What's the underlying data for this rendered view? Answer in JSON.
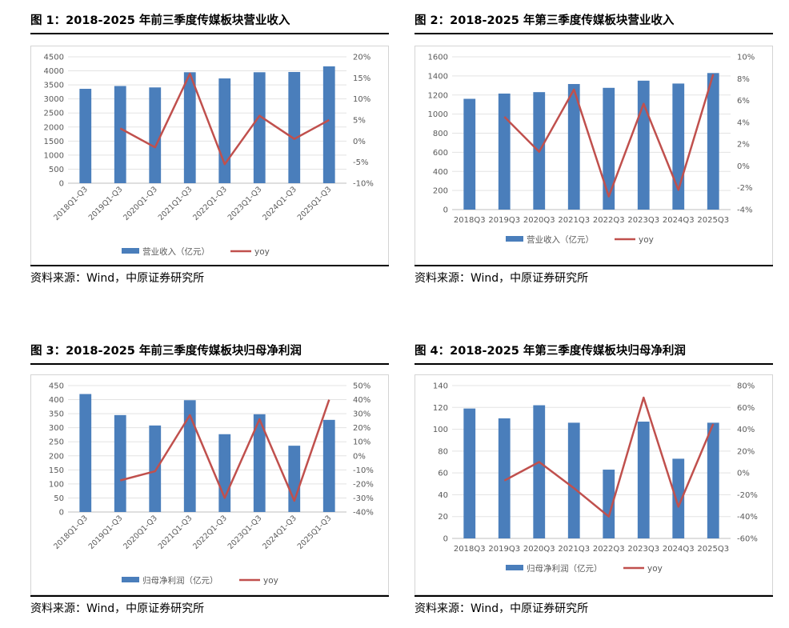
{
  "chart_data": [
    {
      "type": "bar",
      "title": "图 1：2018-2025 年前三季度传媒板块营业收入",
      "categories": [
        "2018Q1-Q3",
        "2019Q1-Q3",
        "2020Q1-Q3",
        "2021Q1-Q3",
        "2022Q1-Q3",
        "2023Q1-Q3",
        "2024Q1-Q3",
        "2025Q1-Q3"
      ],
      "series": [
        {
          "name": "营业收入（亿元）",
          "kind": "bar",
          "axis": "left",
          "color": "#4a7ebb",
          "values": [
            3360,
            3460,
            3410,
            3950,
            3730,
            3950,
            3960,
            4160
          ]
        },
        {
          "name": "yoy",
          "kind": "line",
          "axis": "right",
          "color": "#c0504d",
          "values": [
            null,
            3.0,
            -1.5,
            16.0,
            -5.5,
            6.0,
            0.5,
            5.0
          ]
        }
      ],
      "yticks_left": [
        0,
        500,
        1000,
        1500,
        2000,
        2500,
        3000,
        3500,
        4000,
        4500
      ],
      "yticks_right": [
        -10,
        -5,
        0,
        5,
        10,
        15,
        20
      ],
      "ylim_left": [
        0,
        4500
      ],
      "ylim_right": [
        -10,
        20
      ],
      "ylabel_right_suffix": "%",
      "rotated_xlabels": true,
      "legend_position": "bottom"
    },
    {
      "type": "bar",
      "title": "图 2：2018-2025 年第三季度传媒板块营业收入",
      "categories": [
        "2018Q3",
        "2019Q3",
        "2020Q3",
        "2021Q3",
        "2022Q3",
        "2023Q3",
        "2024Q3",
        "2025Q3"
      ],
      "series": [
        {
          "name": "营业收入（亿元）",
          "kind": "bar",
          "axis": "left",
          "color": "#4a7ebb",
          "values": [
            1160,
            1215,
            1230,
            1315,
            1275,
            1350,
            1320,
            1430
          ]
        },
        {
          "name": "yoy",
          "kind": "line",
          "axis": "right",
          "color": "#c0504d",
          "values": [
            null,
            4.5,
            1.3,
            7.0,
            -2.8,
            5.7,
            -2.2,
            8.4
          ]
        }
      ],
      "yticks_left": [
        0,
        200,
        400,
        600,
        800,
        1000,
        1200,
        1400,
        1600
      ],
      "yticks_right": [
        -4,
        -2,
        0,
        2,
        4,
        6,
        8,
        10
      ],
      "ylim_left": [
        0,
        1600
      ],
      "ylim_right": [
        -4,
        10
      ],
      "ylabel_right_suffix": "%",
      "rotated_xlabels": false,
      "legend_position": "bottom"
    },
    {
      "type": "bar",
      "title": "图 3：2018-2025 年前三季度传媒板块归母净利润",
      "categories": [
        "2018Q1-Q3",
        "2019Q1-Q3",
        "2020Q1-Q3",
        "2021Q1-Q3",
        "2022Q1-Q3",
        "2023Q1-Q3",
        "2024Q1-Q3",
        "2025Q1-Q3"
      ],
      "series": [
        {
          "name": "归母净利润（亿元）",
          "kind": "bar",
          "axis": "left",
          "color": "#4a7ebb",
          "values": [
            420,
            345,
            308,
            398,
            277,
            348,
            236,
            328
          ]
        },
        {
          "name": "yoy",
          "kind": "line",
          "axis": "right",
          "color": "#c0504d",
          "values": [
            null,
            -17.5,
            -11.0,
            29.0,
            -30.0,
            26.0,
            -32.0,
            40.0
          ]
        }
      ],
      "yticks_left": [
        0,
        50,
        100,
        150,
        200,
        250,
        300,
        350,
        400,
        450
      ],
      "yticks_right": [
        -40,
        -30,
        -20,
        -10,
        0,
        10,
        20,
        30,
        40,
        50
      ],
      "ylim_left": [
        0,
        450
      ],
      "ylim_right": [
        -40,
        50
      ],
      "ylabel_right_suffix": "%",
      "rotated_xlabels": true,
      "legend_position": "bottom"
    },
    {
      "type": "bar",
      "title": "图 4：2018-2025 年第三季度传媒板块归母净利润",
      "categories": [
        "2018Q3",
        "2019Q3",
        "2020Q3",
        "2021Q3",
        "2022Q3",
        "2023Q3",
        "2024Q3",
        "2025Q3"
      ],
      "series": [
        {
          "name": "归母净利润（亿元）",
          "kind": "bar",
          "axis": "left",
          "color": "#4a7ebb",
          "values": [
            119,
            110,
            122,
            106,
            63,
            107,
            73,
            106
          ]
        },
        {
          "name": "yoy",
          "kind": "line",
          "axis": "right",
          "color": "#c0504d",
          "values": [
            null,
            -7.0,
            10.0,
            -14.0,
            -40.0,
            69.0,
            -31.0,
            45.0
          ]
        }
      ],
      "yticks_left": [
        0,
        20,
        40,
        60,
        80,
        100,
        120,
        140
      ],
      "yticks_right": [
        -60,
        -40,
        -20,
        0,
        20,
        40,
        60,
        80
      ],
      "ylim_left": [
        0,
        140
      ],
      "ylim_right": [
        -60,
        80
      ],
      "ylabel_right_suffix": "%",
      "rotated_xlabels": false,
      "legend_position": "bottom"
    }
  ],
  "sources": [
    "资料来源：Wind，中原证券研究所",
    "资料来源：Wind，中原证券研究所",
    "资料来源：Wind，中原证券研究所",
    "资料来源：Wind，中原证券研究所"
  ]
}
